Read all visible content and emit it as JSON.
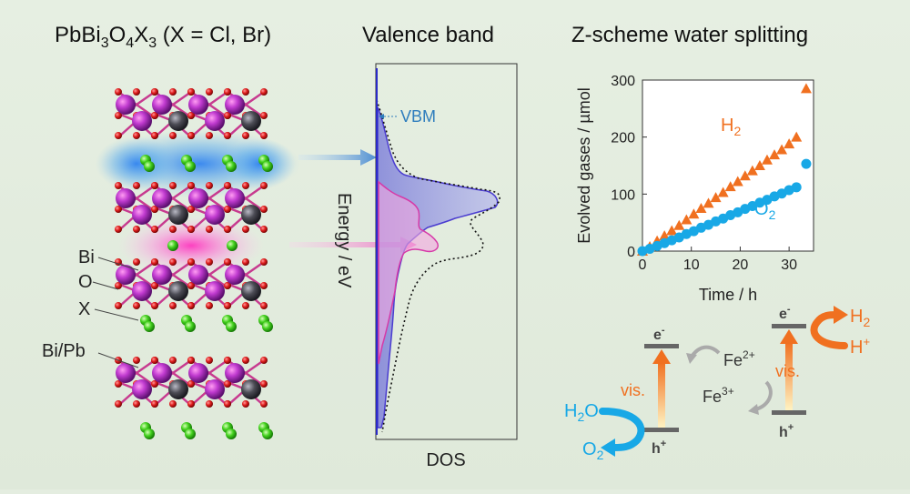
{
  "titles": {
    "left": {
      "base": "PbBi",
      "s1": "3",
      "o": "O",
      "s2": "4",
      "x": "X",
      "s3": "3",
      "rest": " (X = Cl, Br)"
    },
    "middle": "Valence band",
    "right": "Z-scheme water splitting"
  },
  "structure_labels": {
    "bi": "Bi",
    "o": "O",
    "x": "X",
    "bipb": "Bi/Pb"
  },
  "dos_panel": {
    "vbm": "VBM",
    "ylabel": "Energy / eV",
    "xlabel": "DOS"
  },
  "chart_data": {
    "type": "scatter",
    "xlabel": "Time / h",
    "ylabel": "Evolved gases / µmol",
    "xlim": [
      0,
      35
    ],
    "ylim": [
      0,
      300
    ],
    "xticks": [
      "0",
      "10",
      "20",
      "30"
    ],
    "yticks": [
      "0",
      "100",
      "200",
      "300"
    ],
    "series": [
      {
        "name": "H2",
        "label_base": "H",
        "label_sub": "2",
        "marker": "triangle",
        "color": "#f07020",
        "x": [
          0,
          1.5,
          3,
          4.5,
          6,
          7.5,
          9,
          10.5,
          12,
          13.5,
          15,
          16.5,
          18,
          19.5,
          21,
          22.5,
          24,
          25.5,
          27,
          28.5,
          30,
          31.5,
          33.5
        ],
        "y": [
          0,
          8,
          18,
          27,
          36,
          45,
          55,
          65,
          75,
          84,
          94,
          103,
          113,
          122,
          132,
          141,
          150,
          160,
          169,
          178,
          188,
          200,
          285
        ]
      },
      {
        "name": "O2",
        "label_base": "O",
        "label_sub": "2",
        "marker": "circle",
        "color": "#18a8e6",
        "x": [
          0,
          1.5,
          3,
          4.5,
          6,
          7.5,
          9,
          10.5,
          12,
          13.5,
          15,
          16.5,
          18,
          19.5,
          21,
          22.5,
          24,
          25.5,
          27,
          28.5,
          30,
          31.5,
          33.5
        ],
        "y": [
          0,
          4,
          9,
          14,
          19,
          24,
          30,
          35,
          41,
          46,
          52,
          57,
          63,
          68,
          74,
          79,
          85,
          90,
          96,
          101,
          107,
          112,
          153
        ]
      }
    ]
  },
  "scheme": {
    "left_e": "e",
    "left_e_sup": "-",
    "left_h": "h",
    "left_h_sup": "+",
    "right_e": "e",
    "right_e_sup": "-",
    "right_h": "h",
    "right_h_sup": "+",
    "vis_left": "vis.",
    "vis_right": "vis.",
    "h2o": "H",
    "h2o_sub": "2",
    "h2o_rest": "O",
    "o2": "O",
    "o2_sub": "2",
    "h2": "H",
    "h2_sub": "2",
    "hplus": "H",
    "hplus_sup": "+",
    "fe2": "Fe",
    "fe2_sup": "2+",
    "fe3": "Fe",
    "fe3_sup": "3+"
  },
  "colors": {
    "h2": "#f07020",
    "o2": "#18a8e6",
    "label_blue": "#2e7dbd",
    "band": "#666666"
  }
}
